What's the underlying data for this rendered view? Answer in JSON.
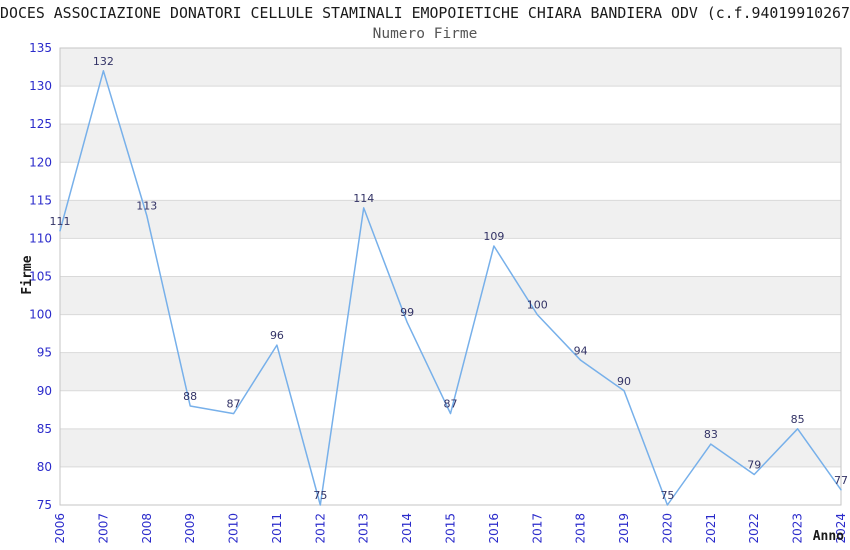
{
  "chart_data": {
    "type": "line",
    "title": "DOCES ASSOCIAZIONE DONATORI CELLULE STAMINALI EMOPOIETICHE CHIARA BANDIERA ODV (c.f.94019910267",
    "subtitle": "Numero Firme",
    "xlabel": "Anno",
    "ylabel": "Firme",
    "categories": [
      "2006",
      "2007",
      "2008",
      "2009",
      "2010",
      "2011",
      "2012",
      "2013",
      "2014",
      "2015",
      "2016",
      "2017",
      "2018",
      "2019",
      "2020",
      "2021",
      "2022",
      "2023",
      "2024"
    ],
    "values": [
      111,
      132,
      113,
      88,
      87,
      96,
      75,
      114,
      99,
      87,
      109,
      100,
      94,
      90,
      75,
      83,
      79,
      85,
      77
    ],
    "ylim": [
      75,
      135
    ],
    "yticks": [
      75,
      80,
      85,
      90,
      95,
      100,
      105,
      110,
      115,
      120,
      125,
      130,
      135
    ],
    "grid": "horizontal-gridlines-with-alternating-bands",
    "legend": "none",
    "colors": {
      "line": "#77b0ea",
      "data_label": "#333366",
      "tick_label": "#2b2bcb",
      "band": "#f0f0f0",
      "gridline": "#d9d9d9",
      "border": "#c6c6c6",
      "title": "#1a1a1a",
      "subtitle": "#555555",
      "axis_title": "#1a1a1a"
    }
  }
}
